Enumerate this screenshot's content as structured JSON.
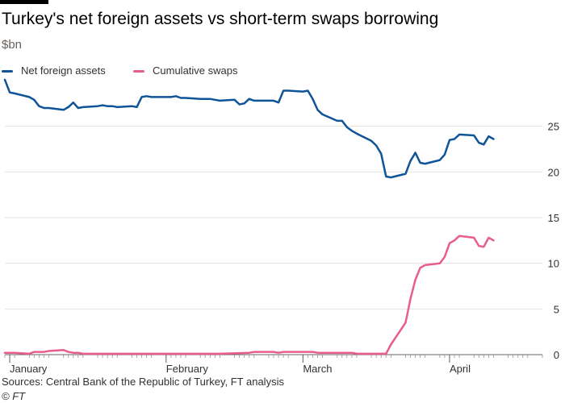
{
  "chart_data": {
    "type": "line",
    "title": "Turkey's net foreign assets vs short-term swaps borrowing",
    "subtitle": "$bn",
    "ylim": [
      0,
      30
    ],
    "y_ticks": [
      "0",
      "5",
      "10",
      "15",
      "20",
      "25"
    ],
    "x_labels": [
      {
        "label": "January",
        "date": "2020-01-02"
      },
      {
        "label": "February",
        "date": "2020-02-03"
      },
      {
        "label": "March",
        "date": "2020-03-02"
      },
      {
        "label": "April",
        "date": "2020-04-01"
      }
    ],
    "x_range": [
      "2020-01-01",
      "2020-04-20"
    ],
    "grid": true,
    "legend_position": "top-left",
    "series": [
      {
        "name": "Net foreign assets",
        "color": "#0f5499",
        "points": [
          [
            "2020-01-01",
            30.1
          ],
          [
            "2020-01-02",
            28.7
          ],
          [
            "2020-01-03",
            28.6
          ],
          [
            "2020-01-06",
            28.2
          ],
          [
            "2020-01-07",
            27.9
          ],
          [
            "2020-01-08",
            27.2
          ],
          [
            "2020-01-09",
            27.0
          ],
          [
            "2020-01-10",
            27.0
          ],
          [
            "2020-01-13",
            26.8
          ],
          [
            "2020-01-14",
            27.1
          ],
          [
            "2020-01-15",
            27.6
          ],
          [
            "2020-01-16",
            27.0
          ],
          [
            "2020-01-17",
            27.1
          ],
          [
            "2020-01-20",
            27.2
          ],
          [
            "2020-01-21",
            27.3
          ],
          [
            "2020-01-22",
            27.2
          ],
          [
            "2020-01-23",
            27.2
          ],
          [
            "2020-01-24",
            27.1
          ],
          [
            "2020-01-27",
            27.2
          ],
          [
            "2020-01-28",
            27.1
          ],
          [
            "2020-01-29",
            28.2
          ],
          [
            "2020-01-30",
            28.3
          ],
          [
            "2020-01-31",
            28.2
          ],
          [
            "2020-02-03",
            28.2
          ],
          [
            "2020-02-04",
            28.2
          ],
          [
            "2020-02-05",
            28.3
          ],
          [
            "2020-02-06",
            28.1
          ],
          [
            "2020-02-07",
            28.1
          ],
          [
            "2020-02-10",
            28.0
          ],
          [
            "2020-02-11",
            28.0
          ],
          [
            "2020-02-12",
            28.0
          ],
          [
            "2020-02-13",
            27.9
          ],
          [
            "2020-02-14",
            27.8
          ],
          [
            "2020-02-17",
            27.9
          ],
          [
            "2020-02-18",
            27.4
          ],
          [
            "2020-02-19",
            27.5
          ],
          [
            "2020-02-20",
            28.0
          ],
          [
            "2020-02-21",
            27.8
          ],
          [
            "2020-02-24",
            27.8
          ],
          [
            "2020-02-25",
            27.8
          ],
          [
            "2020-02-26",
            27.6
          ],
          [
            "2020-02-27",
            28.9
          ],
          [
            "2020-02-28",
            28.9
          ],
          [
            "2020-03-02",
            28.8
          ],
          [
            "2020-03-03",
            28.9
          ],
          [
            "2020-03-04",
            28.0
          ],
          [
            "2020-03-05",
            26.8
          ],
          [
            "2020-03-06",
            26.3
          ],
          [
            "2020-03-09",
            25.6
          ],
          [
            "2020-03-10",
            25.6
          ],
          [
            "2020-03-11",
            24.9
          ],
          [
            "2020-03-12",
            24.5
          ],
          [
            "2020-03-13",
            24.2
          ],
          [
            "2020-03-16",
            23.4
          ],
          [
            "2020-03-17",
            22.9
          ],
          [
            "2020-03-18",
            22.0
          ],
          [
            "2020-03-19",
            19.5
          ],
          [
            "2020-03-20",
            19.4
          ],
          [
            "2020-03-23",
            19.8
          ],
          [
            "2020-03-24",
            21.2
          ],
          [
            "2020-03-25",
            22.1
          ],
          [
            "2020-03-26",
            21.0
          ],
          [
            "2020-03-27",
            20.9
          ],
          [
            "2020-03-30",
            21.3
          ],
          [
            "2020-03-31",
            21.9
          ],
          [
            "2020-04-01",
            23.5
          ],
          [
            "2020-04-02",
            23.6
          ],
          [
            "2020-04-03",
            24.1
          ],
          [
            "2020-04-06",
            24.0
          ],
          [
            "2020-04-07",
            23.2
          ],
          [
            "2020-04-08",
            23.0
          ],
          [
            "2020-04-09",
            23.9
          ],
          [
            "2020-04-10",
            23.6
          ]
        ]
      },
      {
        "name": "Cumulative swaps",
        "color": "#e95d8c",
        "points": [
          [
            "2020-01-01",
            0.2
          ],
          [
            "2020-01-02",
            0.2
          ],
          [
            "2020-01-03",
            0.2
          ],
          [
            "2020-01-06",
            0.1
          ],
          [
            "2020-01-07",
            0.3
          ],
          [
            "2020-01-08",
            0.3
          ],
          [
            "2020-01-09",
            0.3
          ],
          [
            "2020-01-10",
            0.4
          ],
          [
            "2020-01-13",
            0.5
          ],
          [
            "2020-01-14",
            0.3
          ],
          [
            "2020-01-15",
            0.2
          ],
          [
            "2020-01-16",
            0.2
          ],
          [
            "2020-01-17",
            0.1
          ],
          [
            "2020-01-20",
            0.1
          ],
          [
            "2020-01-24",
            0.1
          ],
          [
            "2020-02-03",
            0.1
          ],
          [
            "2020-02-14",
            0.1
          ],
          [
            "2020-02-20",
            0.2
          ],
          [
            "2020-02-21",
            0.3
          ],
          [
            "2020-02-25",
            0.3
          ],
          [
            "2020-02-26",
            0.2
          ],
          [
            "2020-02-27",
            0.3
          ],
          [
            "2020-03-04",
            0.3
          ],
          [
            "2020-03-05",
            0.2
          ],
          [
            "2020-03-12",
            0.2
          ],
          [
            "2020-03-13",
            0.1
          ],
          [
            "2020-03-18",
            0.1
          ],
          [
            "2020-03-19",
            0.1
          ],
          [
            "2020-03-20",
            1.1
          ],
          [
            "2020-03-23",
            3.5
          ],
          [
            "2020-03-24",
            6.1
          ],
          [
            "2020-03-25",
            8.2
          ],
          [
            "2020-03-26",
            9.5
          ],
          [
            "2020-03-27",
            9.8
          ],
          [
            "2020-03-30",
            10.0
          ],
          [
            "2020-03-31",
            10.7
          ],
          [
            "2020-04-01",
            12.2
          ],
          [
            "2020-04-02",
            12.5
          ],
          [
            "2020-04-03",
            13.0
          ],
          [
            "2020-04-06",
            12.8
          ],
          [
            "2020-04-07",
            11.9
          ],
          [
            "2020-04-08",
            11.8
          ],
          [
            "2020-04-09",
            12.8
          ],
          [
            "2020-04-10",
            12.5
          ]
        ]
      }
    ],
    "sources": "Sources: Central Bank of the Republic of Turkey, FT analysis",
    "credit": "© FT"
  }
}
